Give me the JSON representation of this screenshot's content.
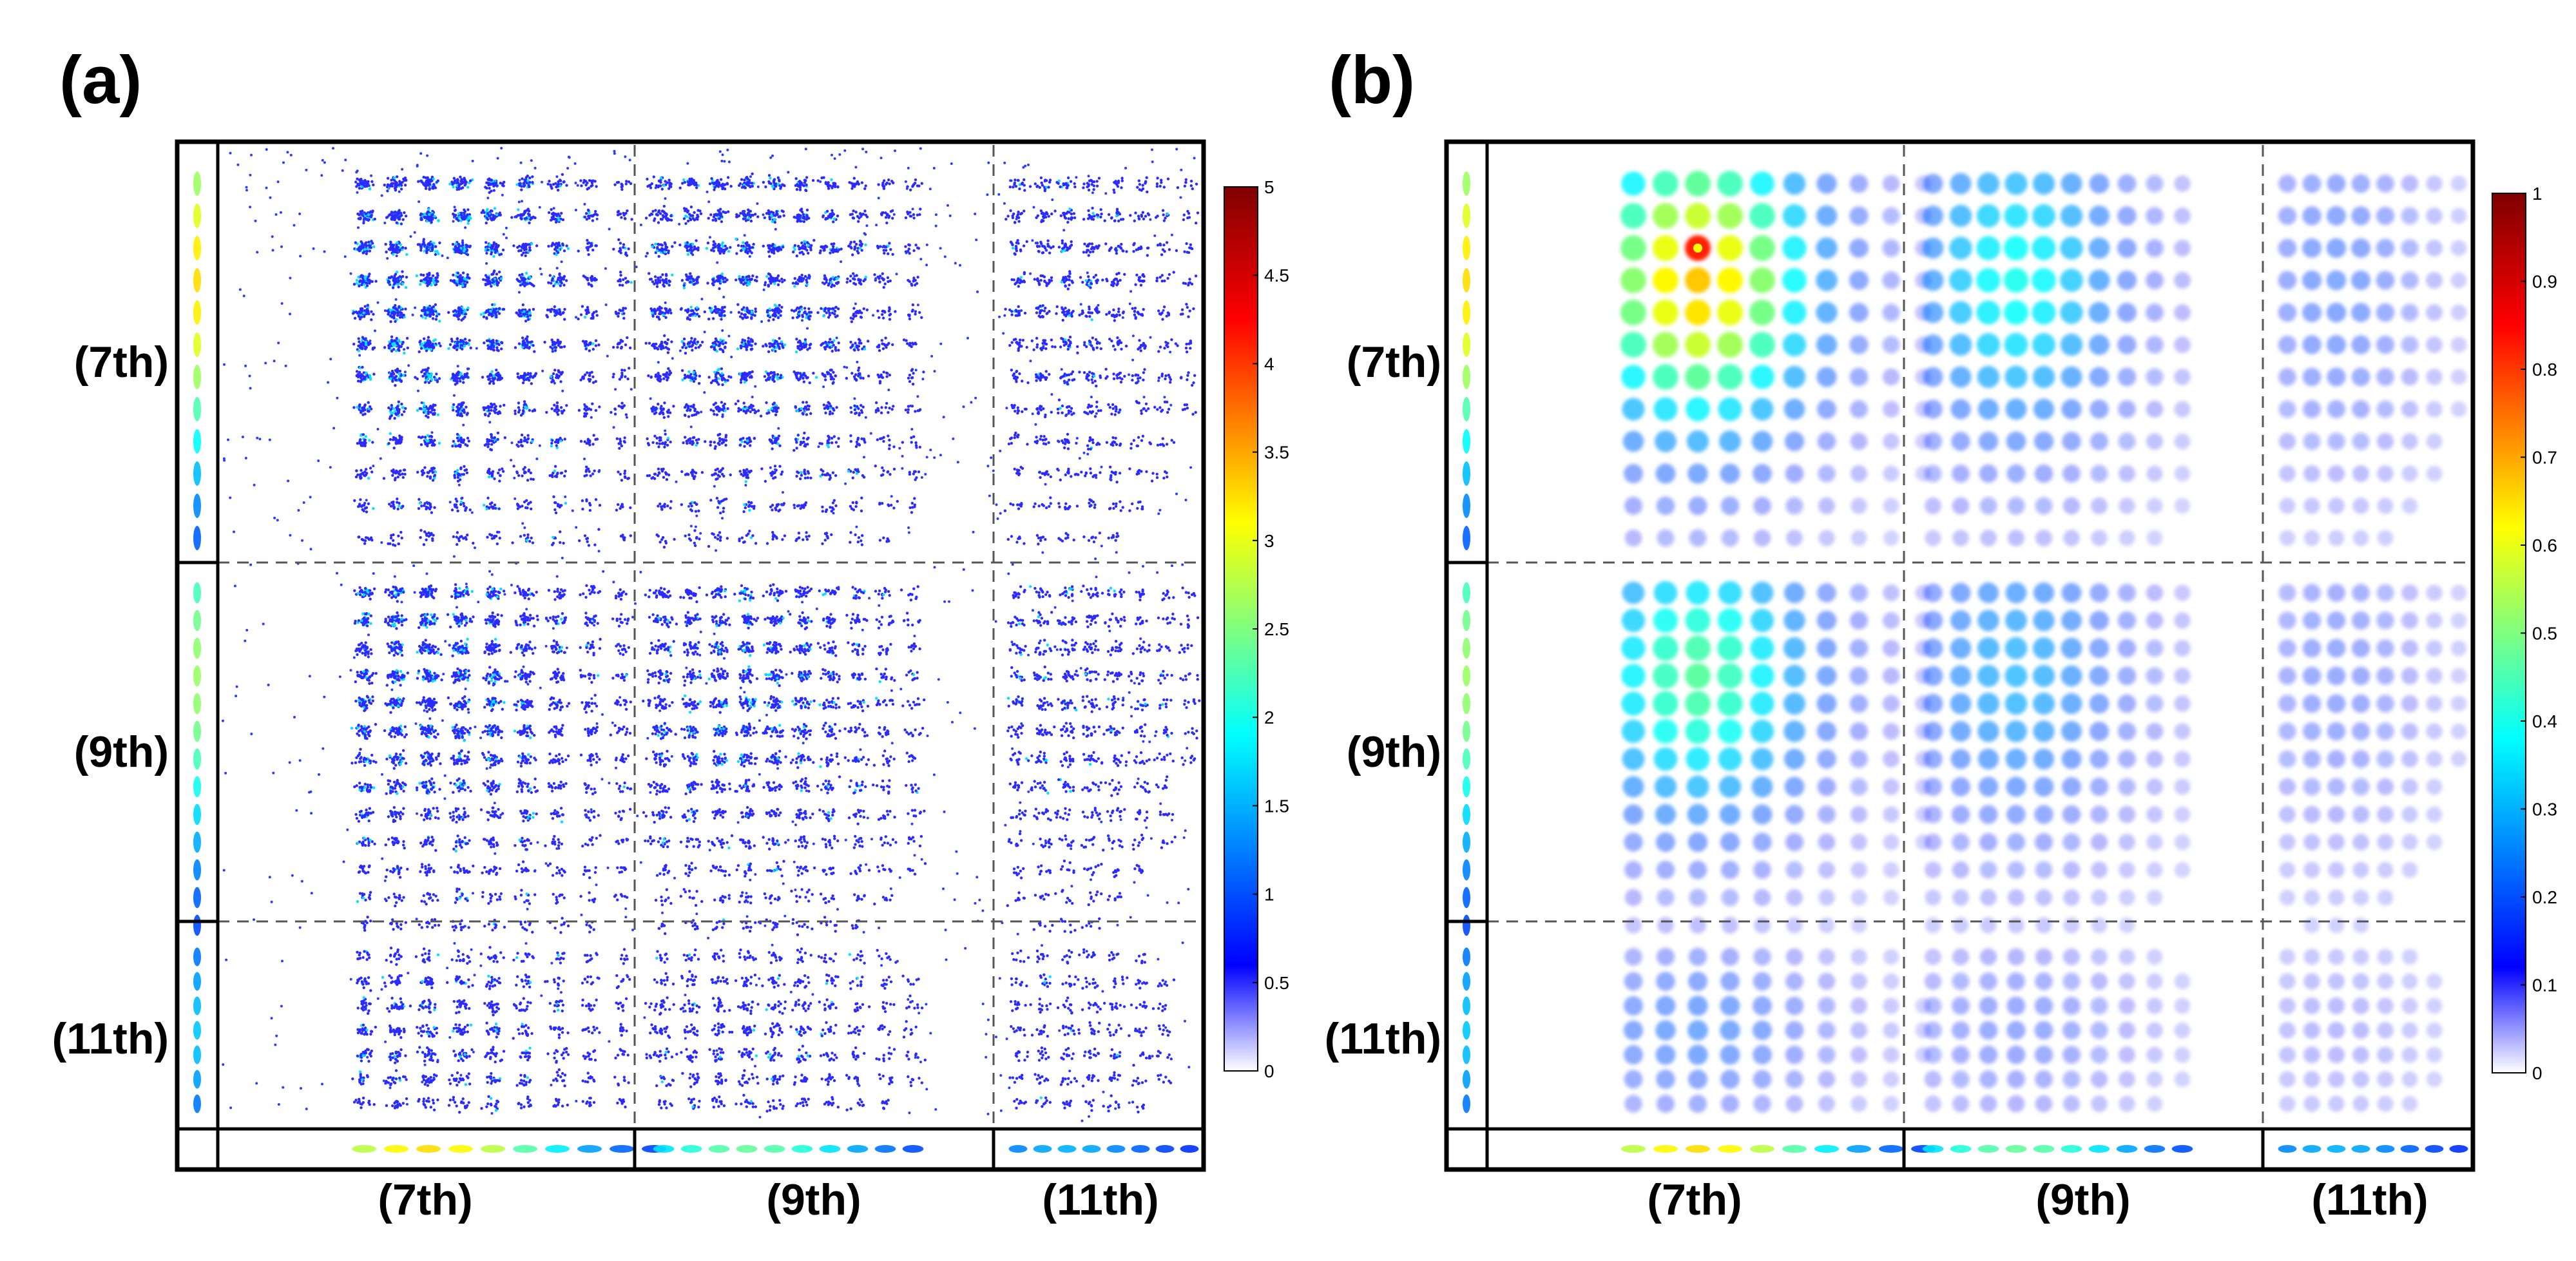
{
  "chart_data": [
    {
      "type": "heatmap",
      "panel_label": "(a)",
      "title": "",
      "x_labels": [
        "(7th)",
        "(9th)",
        "(11th)"
      ],
      "y_labels": [
        "(7th)",
        "(9th)",
        "(11th)"
      ],
      "colorbar": {
        "min": 0,
        "max": 5,
        "ticks": [
          "0",
          "0.5",
          "1",
          "1.5",
          "2",
          "2.5",
          "3",
          "3.5",
          "4",
          "4.5",
          "5"
        ]
      },
      "style": "scatter-counts",
      "colormap": [
        "#ffffff",
        "#0000ff",
        "#00ffff",
        "#ffff00",
        "#ff0000",
        "#800000"
      ]
    },
    {
      "type": "heatmap",
      "panel_label": "(b)",
      "title": "",
      "x_labels": [
        "(7th)",
        "(9th)",
        "(11th)"
      ],
      "y_labels": [
        "(7th)",
        "(9th)",
        "(11th)"
      ],
      "colorbar": {
        "min": 0,
        "max": 1,
        "ticks": [
          "0",
          "0.1",
          "0.2",
          "0.3",
          "0.4",
          "0.5",
          "0.6",
          "0.7",
          "0.8",
          "0.9",
          "1"
        ]
      },
      "style": "smooth",
      "colormap": [
        "#ffffff",
        "#0000ff",
        "#00ffff",
        "#ffff00",
        "#ff0000",
        "#800000"
      ]
    }
  ]
}
